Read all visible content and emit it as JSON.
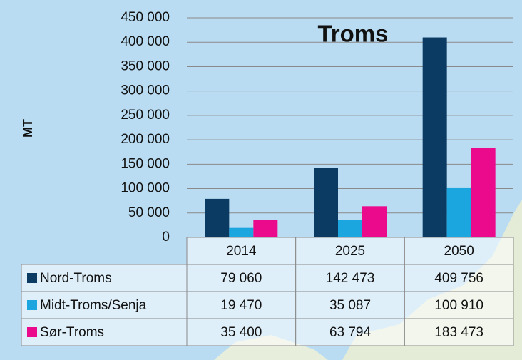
{
  "chart_data": {
    "type": "bar",
    "title": "Troms",
    "y_label": "MT",
    "categories": [
      "2014",
      "2025",
      "2050"
    ],
    "series": [
      {
        "name": "Nord-Troms",
        "color": "#0b3a63",
        "values": [
          79060,
          142473,
          409756
        ],
        "value_labels": [
          "79 060",
          "142 473",
          "409 756"
        ]
      },
      {
        "name": "Midt-Troms/Senja",
        "color": "#1ba6df",
        "values": [
          19470,
          35087,
          100910
        ],
        "value_labels": [
          "19 470",
          "35 087",
          "100 910"
        ]
      },
      {
        "name": "Sør-Troms",
        "color": "#ec0a8c",
        "values": [
          35400,
          63794,
          183473
        ],
        "value_labels": [
          "35 400",
          "63 794",
          "183 473"
        ]
      }
    ],
    "ylim": [
      0,
      450000
    ],
    "yticks": [
      0,
      {
        "value": 50000,
        "label": "50 000"
      },
      {
        "value": 100000,
        "label": "100 000"
      },
      {
        "value": 150000,
        "label": "150 000"
      },
      {
        "value": 200000,
        "label": "200 000"
      },
      {
        "value": 250000,
        "label": "250 000"
      },
      {
        "value": 300000,
        "label": "300 000"
      },
      {
        "value": 350000,
        "label": "350 000"
      },
      {
        "value": 400000,
        "label": "400 000"
      },
      {
        "value": 450000,
        "label": "450 000"
      }
    ],
    "grid": true
  }
}
